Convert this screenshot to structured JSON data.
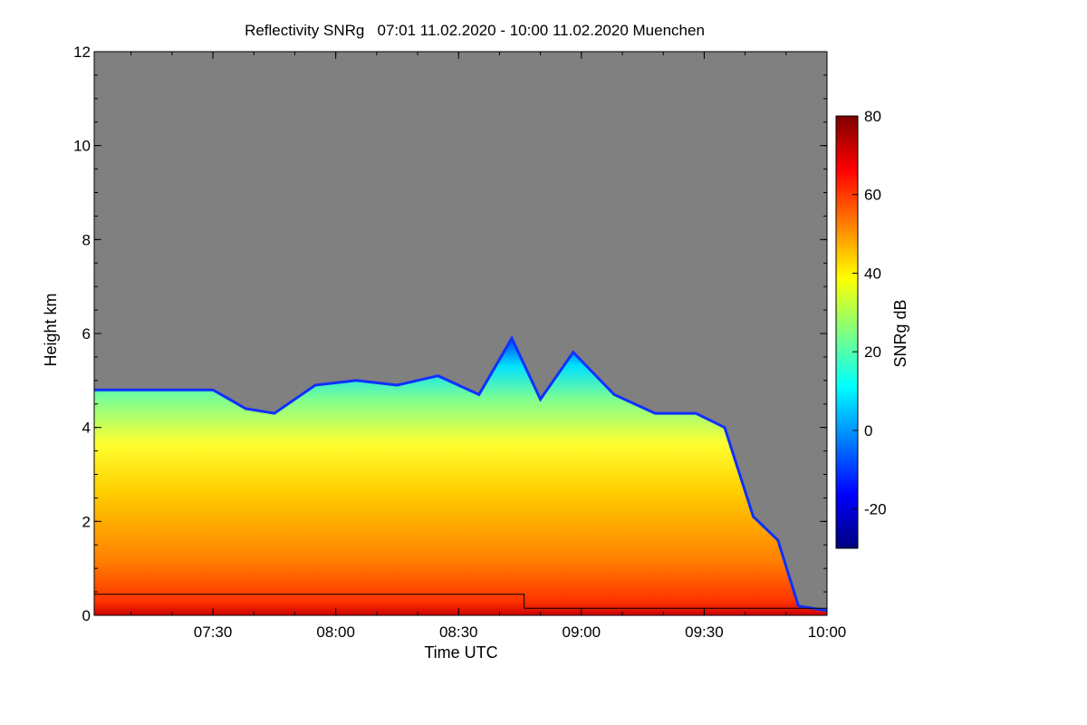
{
  "chart_data": {
    "type": "heatmap",
    "title": "Reflectivity SNRg   07:01 11.02.2020 - 10:00 11.02.2020 Muenchen",
    "xlabel": "Time UTC",
    "ylabel": "Height km",
    "x_range": [
      "07:01",
      "10:00"
    ],
    "ylim": [
      0,
      12
    ],
    "x_ticks": [
      "07:30",
      "08:00",
      "08:30",
      "09:00",
      "09:30",
      "10:00"
    ],
    "y_ticks": [
      "0",
      "2",
      "4",
      "6",
      "8",
      "10",
      "12"
    ],
    "colorbar": {
      "label": "SNRg dB",
      "range": [
        -30,
        80
      ],
      "ticks": [
        "-20",
        "0",
        "20",
        "40",
        "60",
        "80"
      ],
      "colors": [
        "#00007f",
        "#0000ff",
        "#007fff",
        "#00ffff",
        "#7fff7f",
        "#ffff00",
        "#ff7f00",
        "#ff0000",
        "#7f0000"
      ]
    },
    "background_color": "#808080",
    "cloud_top_profile": [
      {
        "t": "07:01",
        "h": 4.8
      },
      {
        "t": "07:15",
        "h": 4.8
      },
      {
        "t": "07:30",
        "h": 4.8
      },
      {
        "t": "07:38",
        "h": 4.4
      },
      {
        "t": "07:45",
        "h": 4.3
      },
      {
        "t": "07:55",
        "h": 4.9
      },
      {
        "t": "08:05",
        "h": 5.0
      },
      {
        "t": "08:15",
        "h": 4.9
      },
      {
        "t": "08:25",
        "h": 5.1
      },
      {
        "t": "08:35",
        "h": 4.7
      },
      {
        "t": "08:43",
        "h": 5.9
      },
      {
        "t": "08:50",
        "h": 4.6
      },
      {
        "t": "08:58",
        "h": 5.6
      },
      {
        "t": "09:08",
        "h": 4.7
      },
      {
        "t": "09:18",
        "h": 4.3
      },
      {
        "t": "09:28",
        "h": 4.3
      },
      {
        "t": "09:35",
        "h": 4.0
      },
      {
        "t": "09:42",
        "h": 2.1
      },
      {
        "t": "09:48",
        "h": 1.6
      },
      {
        "t": "09:53",
        "h": 0.2
      },
      {
        "t": "10:00",
        "h": 0.1
      }
    ],
    "reference_line": [
      {
        "t": "07:01",
        "h": 0.45
      },
      {
        "t": "08:46",
        "h": 0.45
      },
      {
        "t": "08:46",
        "h": 0.15
      },
      {
        "t": "10:00",
        "h": 0.15
      }
    ]
  }
}
